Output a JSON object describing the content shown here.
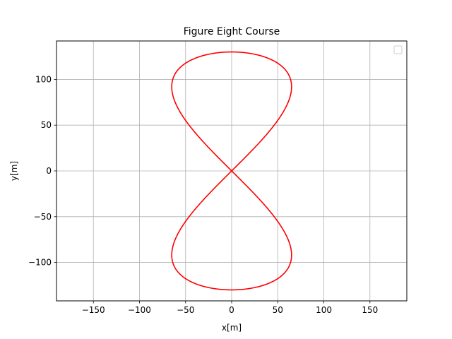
{
  "chart_data": {
    "type": "line",
    "title": "Figure Eight Course",
    "xlabel": "x[m]",
    "ylabel": "y[m]",
    "xlim": [
      -190,
      190
    ],
    "ylim": [
      -142,
      142
    ],
    "xticks": [
      -150,
      -100,
      -50,
      0,
      50,
      100,
      150
    ],
    "yticks": [
      -100,
      -50,
      0,
      50,
      100
    ],
    "xtick_labels": [
      "−150",
      "−100",
      "−50",
      "0",
      "50",
      "100",
      "150"
    ],
    "ytick_labels": [
      "−100",
      "−50",
      "0",
      "50",
      "100"
    ],
    "grid": true,
    "legend": {
      "placement": "top-right",
      "entries": []
    },
    "series": [
      {
        "color": "#ff0000",
        "curve": "figure-eight",
        "x_range": [
          -65,
          65
        ],
        "y_range": [
          -130,
          130
        ],
        "lobe_centers_y": [
          65,
          -65
        ],
        "crossing": [
          0,
          0
        ],
        "x": [
          0,
          12.3,
          35.2,
          55.6,
          64.1,
          55.6,
          35.2,
          12.3,
          0,
          -12.3,
          -35.2,
          -55.6,
          -64.1,
          -55.6,
          -35.2,
          -12.3,
          0,
          12.3,
          35.2,
          55.6,
          64.1,
          55.6,
          35.2,
          12.3,
          0,
          -12.3,
          -35.2,
          -55.6,
          -64.1,
          -55.6,
          -35.2,
          -12.3,
          0
        ],
        "y": [
          0,
          3,
          16,
          38,
          65,
          92,
          114,
          127,
          130,
          127,
          114,
          92,
          65,
          38,
          16,
          3,
          0,
          -3,
          -16,
          -38,
          -65,
          -92,
          -114,
          -127,
          -130,
          -127,
          -114,
          -92,
          -65,
          -38,
          -16,
          -3,
          0
        ]
      }
    ]
  }
}
